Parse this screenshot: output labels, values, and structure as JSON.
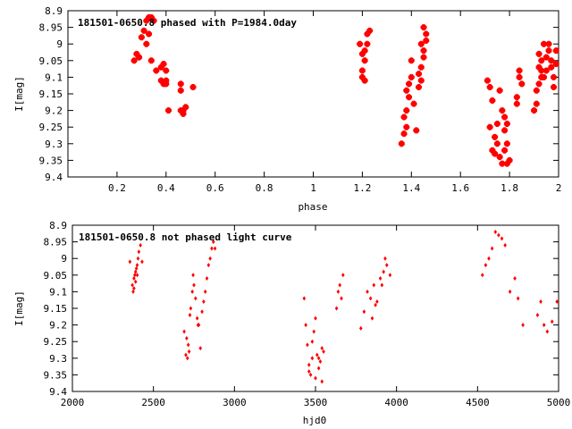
{
  "chart_data": [
    {
      "type": "scatter",
      "title": "181501-0650.8 phased with P=1984.0day",
      "xlabel": "phase",
      "ylabel": "I[mag]",
      "xlim": [
        0,
        2
      ],
      "ylim": [
        9.4,
        8.9
      ],
      "y_inverted": true,
      "grid": false,
      "marker": "filled-circle-large",
      "color": "#ff0000",
      "x_ticks": [
        0.2,
        0.4,
        0.6,
        0.8,
        1,
        1.2,
        1.4,
        1.6,
        1.8,
        2
      ],
      "x_tick_labels": [
        "0.2",
        "0.4",
        "0.6",
        "0.8",
        "1",
        "1.2",
        "1.4",
        "1.6",
        "1.8",
        "2"
      ],
      "y_ticks": [
        8.9,
        8.95,
        9,
        9.05,
        9.1,
        9.15,
        9.2,
        9.25,
        9.3,
        9.35,
        9.4
      ],
      "y_tick_labels": [
        "8.9",
        "8.95",
        "9",
        "9.05",
        "9.1",
        "9.15",
        "9.2",
        "9.25",
        "9.3",
        "9.35",
        "9.4"
      ],
      "series": [
        {
          "x": [
            0.27,
            0.28,
            0.29,
            0.3,
            0.31,
            0.32,
            0.33,
            0.34,
            0.35,
            0.33,
            0.32,
            0.34,
            0.36,
            0.38,
            0.38,
            0.39,
            0.4,
            0.39,
            0.4,
            0.41,
            0.4,
            0.46,
            0.47,
            0.46,
            0.48,
            0.47,
            0.46,
            0.51,
            1.19,
            1.2,
            1.2,
            1.21,
            1.21,
            1.22,
            1.22,
            1.23,
            1.2,
            1.21,
            1.36,
            1.37,
            1.37,
            1.38,
            1.38,
            1.39,
            1.39,
            1.4,
            1.4,
            1.41,
            1.42,
            1.43,
            1.44,
            1.44,
            1.45,
            1.45,
            1.46,
            1.46,
            1.44,
            1.45,
            1.43,
            1.38,
            1.71,
            1.72,
            1.72,
            1.73,
            1.73,
            1.74,
            1.74,
            1.75,
            1.75,
            1.76,
            1.77,
            1.77,
            1.78,
            1.78,
            1.79,
            1.79,
            1.8,
            1.79,
            1.78,
            1.76,
            1.83,
            1.84,
            1.84,
            1.85,
            1.83,
            1.9,
            1.91,
            1.91,
            1.92,
            1.92,
            1.93,
            1.93,
            1.94,
            1.94,
            1.95,
            1.95,
            1.96,
            1.96,
            1.97,
            1.97,
            1.98,
            1.98,
            1.99,
            1.99,
            1.92,
            1.93
          ],
          "y": [
            9.05,
            9.03,
            9.04,
            8.98,
            8.96,
            8.93,
            8.92,
            8.92,
            8.93,
            8.97,
            9.0,
            9.05,
            9.08,
            9.11,
            9.07,
            9.12,
            9.12,
            9.06,
            9.08,
            9.2,
            9.11,
            9.14,
            9.2,
            9.12,
            9.19,
            9.21,
            9.2,
            9.13,
            9.0,
            9.03,
            9.08,
            9.05,
            9.02,
            8.97,
            9.0,
            8.96,
            9.1,
            9.11,
            9.3,
            9.27,
            9.22,
            9.25,
            9.2,
            9.16,
            9.12,
            9.05,
            9.1,
            9.18,
            9.26,
            9.13,
            9.07,
            9.0,
            9.02,
            8.95,
            8.99,
            8.97,
            9.11,
            9.04,
            9.09,
            9.14,
            9.11,
            9.13,
            9.25,
            9.17,
            9.32,
            9.28,
            9.33,
            9.3,
            9.24,
            9.34,
            9.36,
            9.2,
            9.32,
            9.26,
            9.3,
            9.36,
            9.35,
            9.24,
            9.22,
            9.14,
            9.18,
            9.08,
            9.1,
            9.12,
            9.16,
            9.2,
            9.18,
            9.14,
            9.12,
            9.07,
            9.1,
            9.05,
            9.0,
            9.1,
            9.04,
            9.08,
            9.0,
            9.02,
            9.07,
            9.05,
            9.1,
            9.13,
            9.02,
            9.06,
            9.03,
            9.08
          ]
        }
      ]
    },
    {
      "type": "scatter",
      "title": "181501-0650.8 not phased light curve",
      "xlabel": "hjd0",
      "ylabel": "I[mag]",
      "xlim": [
        2000,
        5000
      ],
      "ylim": [
        9.4,
        8.9
      ],
      "y_inverted": true,
      "grid": false,
      "marker": "filled-diamond-small",
      "color": "#ff0000",
      "x_ticks": [
        2000,
        2500,
        3000,
        3500,
        4000,
        4500,
        5000
      ],
      "x_tick_labels": [
        "2000",
        "2500",
        "3000",
        "3500",
        "4000",
        "4500",
        "5000"
      ],
      "y_ticks": [
        8.9,
        8.95,
        9,
        9.05,
        9.1,
        9.15,
        9.2,
        9.25,
        9.3,
        9.35,
        9.4
      ],
      "y_tick_labels": [
        "8.9",
        "8.95",
        "9",
        "9.05",
        "9.1",
        "9.15",
        "9.2",
        "9.25",
        "9.3",
        "9.35",
        "9.4"
      ],
      "series": [
        {
          "x": [
            2355,
            2370,
            2375,
            2380,
            2385,
            2390,
            2395,
            2400,
            2405,
            2410,
            2420,
            2430,
            2380,
            2390,
            2400,
            2690,
            2700,
            2710,
            2715,
            2720,
            2730,
            2740,
            2745,
            2750,
            2760,
            2770,
            2780,
            2790,
            2800,
            2810,
            2820,
            2830,
            2840,
            2850,
            2860,
            2870,
            2880,
            2705,
            2725,
            2775,
            3430,
            3440,
            3450,
            3460,
            3470,
            3480,
            3490,
            3500,
            3510,
            3520,
            3530,
            3540,
            3550,
            3460,
            3480,
            3500,
            3520,
            3540,
            3630,
            3640,
            3650,
            3660,
            3670,
            3780,
            3800,
            3820,
            3840,
            3860,
            3880,
            3900,
            3920,
            3940,
            3960,
            3850,
            3870,
            3910,
            3930,
            4530,
            4550,
            4570,
            4590,
            4610,
            4630,
            4650,
            4670,
            4700,
            4730,
            4750,
            4780,
            4870,
            4890,
            4910,
            4930,
            4960,
            4990
          ],
          "y": [
            9.01,
            9.08,
            9.1,
            9.06,
            9.05,
            9.04,
            9.03,
            9.02,
            9.0,
            8.98,
            8.96,
            9.01,
            9.09,
            9.07,
            9.05,
            9.22,
            9.29,
            9.3,
            9.26,
            9.28,
            9.15,
            9.1,
            9.05,
            9.08,
            9.12,
            9.18,
            9.2,
            9.27,
            9.16,
            9.13,
            9.1,
            9.06,
            9.02,
            9.0,
            8.97,
            8.95,
            8.97,
            9.24,
            9.17,
            9.2,
            9.12,
            9.2,
            9.26,
            9.32,
            9.35,
            9.3,
            9.22,
            9.18,
            9.29,
            9.33,
            9.31,
            9.37,
            9.28,
            9.34,
            9.25,
            9.36,
            9.3,
            9.27,
            9.15,
            9.1,
            9.08,
            9.12,
            9.05,
            9.21,
            9.16,
            9.1,
            9.12,
            9.08,
            9.13,
            9.06,
            9.04,
            9.02,
            9.05,
            9.18,
            9.14,
            9.08,
            9.0,
            9.05,
            9.02,
            9.0,
            8.97,
            8.92,
            8.93,
            8.94,
            8.96,
            9.1,
            9.06,
            9.12,
            9.2,
            9.17,
            9.13,
            9.2,
            9.22,
            9.19,
            9.13
          ]
        }
      ]
    }
  ]
}
